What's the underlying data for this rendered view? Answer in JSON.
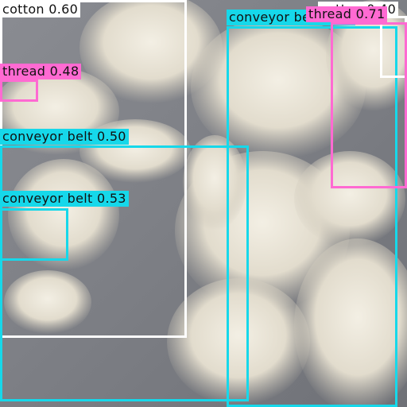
{
  "detections": [
    {
      "label": "cotton 0.60",
      "kind": "cotton"
    },
    {
      "label": "conveyor belt 0.50",
      "kind": "conveyor-belt"
    },
    {
      "label": "conveyor belt 0.53",
      "kind": "conveyor-belt"
    },
    {
      "label": "thread 0.48",
      "kind": "thread"
    },
    {
      "label": "conveyor belt 0.49",
      "kind": "conveyor-belt"
    },
    {
      "label": "cotton 0.40",
      "kind": "cotton"
    },
    {
      "label": "thread 0.71",
      "kind": "thread"
    }
  ],
  "colors": {
    "cotton": "#ffffff",
    "conveyor-belt": "#16d8ea",
    "thread": "#ff6ad2"
  }
}
